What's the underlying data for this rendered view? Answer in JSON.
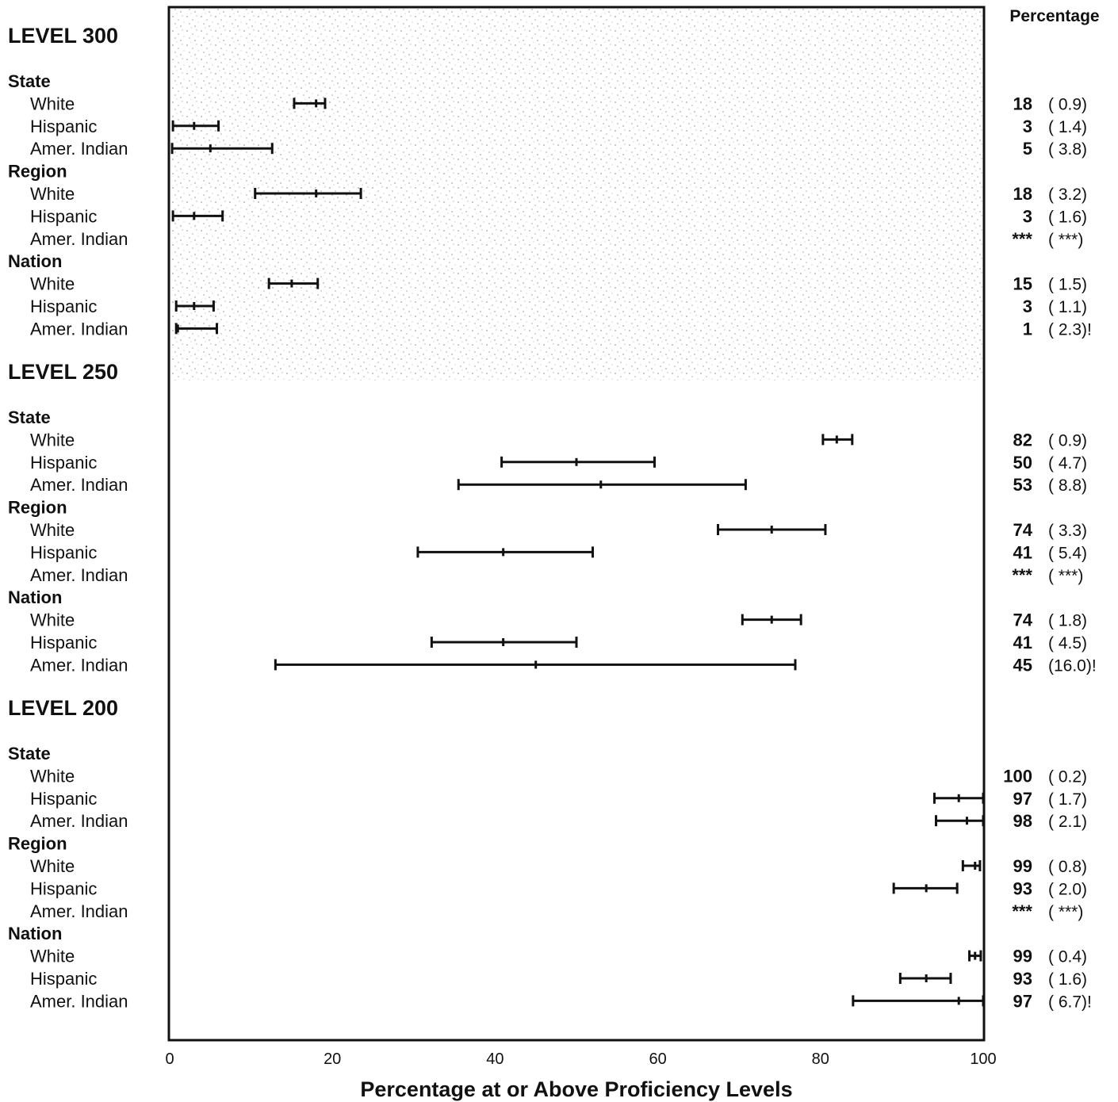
{
  "chart_data": {
    "type": "interval",
    "xlabel": "Percentage at or Above Proficiency Levels",
    "column_header": "Percentage",
    "xlim": [
      0,
      100
    ],
    "xticks": [
      "0",
      "20",
      "40",
      "60",
      "80",
      "100"
    ],
    "grid": false,
    "levels": [
      {
        "name": "LEVEL 300",
        "groups": [
          {
            "name": "State",
            "rows": [
              {
                "label": "White",
                "value": 18,
                "value_text": "18",
                "se_text": "( 0.9)",
                "low": 15.3,
                "high": 19.1
              },
              {
                "label": "Hispanic",
                "value": 3,
                "value_text": "3",
                "se_text": "( 1.4)",
                "low": 0.4,
                "high": 6.0
              },
              {
                "label": "Amer. Indian",
                "value": 5,
                "value_text": "5",
                "se_text": "( 3.8)",
                "low": 0.3,
                "high": 12.6
              }
            ]
          },
          {
            "name": "Region",
            "rows": [
              {
                "label": "White",
                "value": 18,
                "value_text": "18",
                "se_text": "( 3.2)",
                "low": 10.5,
                "high": 23.5
              },
              {
                "label": "Hispanic",
                "value": 3,
                "value_text": "3",
                "se_text": "( 1.6)",
                "low": 0.4,
                "high": 6.5
              },
              {
                "label": "Amer. Indian",
                "value": null,
                "value_text": "***",
                "se_text": "( ***)",
                "low": null,
                "high": null
              }
            ]
          },
          {
            "name": "Nation",
            "rows": [
              {
                "label": "White",
                "value": 15,
                "value_text": "15",
                "se_text": "( 1.5)",
                "low": 12.2,
                "high": 18.2
              },
              {
                "label": "Hispanic",
                "value": 3,
                "value_text": "3",
                "se_text": "( 1.1)",
                "low": 0.8,
                "high": 5.4
              },
              {
                "label": "Amer. Indian",
                "value": 1,
                "value_text": "1",
                "se_text": "( 2.3)!",
                "low": 0.8,
                "high": 5.8
              }
            ]
          }
        ]
      },
      {
        "name": "LEVEL 250",
        "groups": [
          {
            "name": "State",
            "rows": [
              {
                "label": "White",
                "value": 82,
                "value_text": "82",
                "se_text": "( 0.9)",
                "low": 80.3,
                "high": 83.9
              },
              {
                "label": "Hispanic",
                "value": 50,
                "value_text": "50",
                "se_text": "( 4.7)",
                "low": 40.8,
                "high": 59.6
              },
              {
                "label": "Amer. Indian",
                "value": 53,
                "value_text": "53",
                "se_text": "( 8.8)",
                "low": 35.5,
                "high": 70.8
              }
            ]
          },
          {
            "name": "Region",
            "rows": [
              {
                "label": "White",
                "value": 74,
                "value_text": "74",
                "se_text": "( 3.3)",
                "low": 67.4,
                "high": 80.6
              },
              {
                "label": "Hispanic",
                "value": 41,
                "value_text": "41",
                "se_text": "( 5.4)",
                "low": 30.5,
                "high": 52.0
              },
              {
                "label": "Amer. Indian",
                "value": null,
                "value_text": "***",
                "se_text": "( ***)",
                "low": null,
                "high": null
              }
            ]
          },
          {
            "name": "Nation",
            "rows": [
              {
                "label": "White",
                "value": 74,
                "value_text": "74",
                "se_text": "( 1.8)",
                "low": 70.4,
                "high": 77.6
              },
              {
                "label": "Hispanic",
                "value": 41,
                "value_text": "41",
                "se_text": "( 4.5)",
                "low": 32.2,
                "high": 50.0
              },
              {
                "label": "Amer. Indian",
                "value": 45,
                "value_text": "45",
                "se_text": "(16.0)!",
                "low": 13.0,
                "high": 76.9
              }
            ]
          }
        ]
      },
      {
        "name": "LEVEL 200",
        "groups": [
          {
            "name": "State",
            "rows": [
              {
                "label": "White",
                "value": 100,
                "value_text": "100",
                "se_text": "( 0.2)",
                "low": null,
                "high": null
              },
              {
                "label": "Hispanic",
                "value": 97,
                "value_text": "97",
                "se_text": "( 1.7)",
                "low": 94.0,
                "high": 100.0
              },
              {
                "label": "Amer. Indian",
                "value": 98,
                "value_text": "98",
                "se_text": "( 2.1)",
                "low": 94.2,
                "high": 100.0
              }
            ]
          },
          {
            "name": "Region",
            "rows": [
              {
                "label": "White",
                "value": 99,
                "value_text": "99",
                "se_text": "( 0.8)",
                "low": 97.5,
                "high": 99.6
              },
              {
                "label": "Hispanic",
                "value": 93,
                "value_text": "93",
                "se_text": "( 2.0)",
                "low": 89.0,
                "high": 96.8
              },
              {
                "label": "Amer. Indian",
                "value": null,
                "value_text": "***",
                "se_text": "( ***)",
                "low": null,
                "high": null
              }
            ]
          },
          {
            "name": "Nation",
            "rows": [
              {
                "label": "White",
                "value": 99,
                "value_text": "99",
                "se_text": "( 0.4)",
                "low": 98.3,
                "high": 99.7
              },
              {
                "label": "Hispanic",
                "value": 93,
                "value_text": "93",
                "se_text": "( 1.6)",
                "low": 89.8,
                "high": 96.0
              },
              {
                "label": "Amer. Indian",
                "value": 97,
                "value_text": "97",
                "se_text": "( 6.7)!",
                "low": 84.0,
                "high": 100.0
              }
            ]
          }
        ]
      }
    ]
  }
}
